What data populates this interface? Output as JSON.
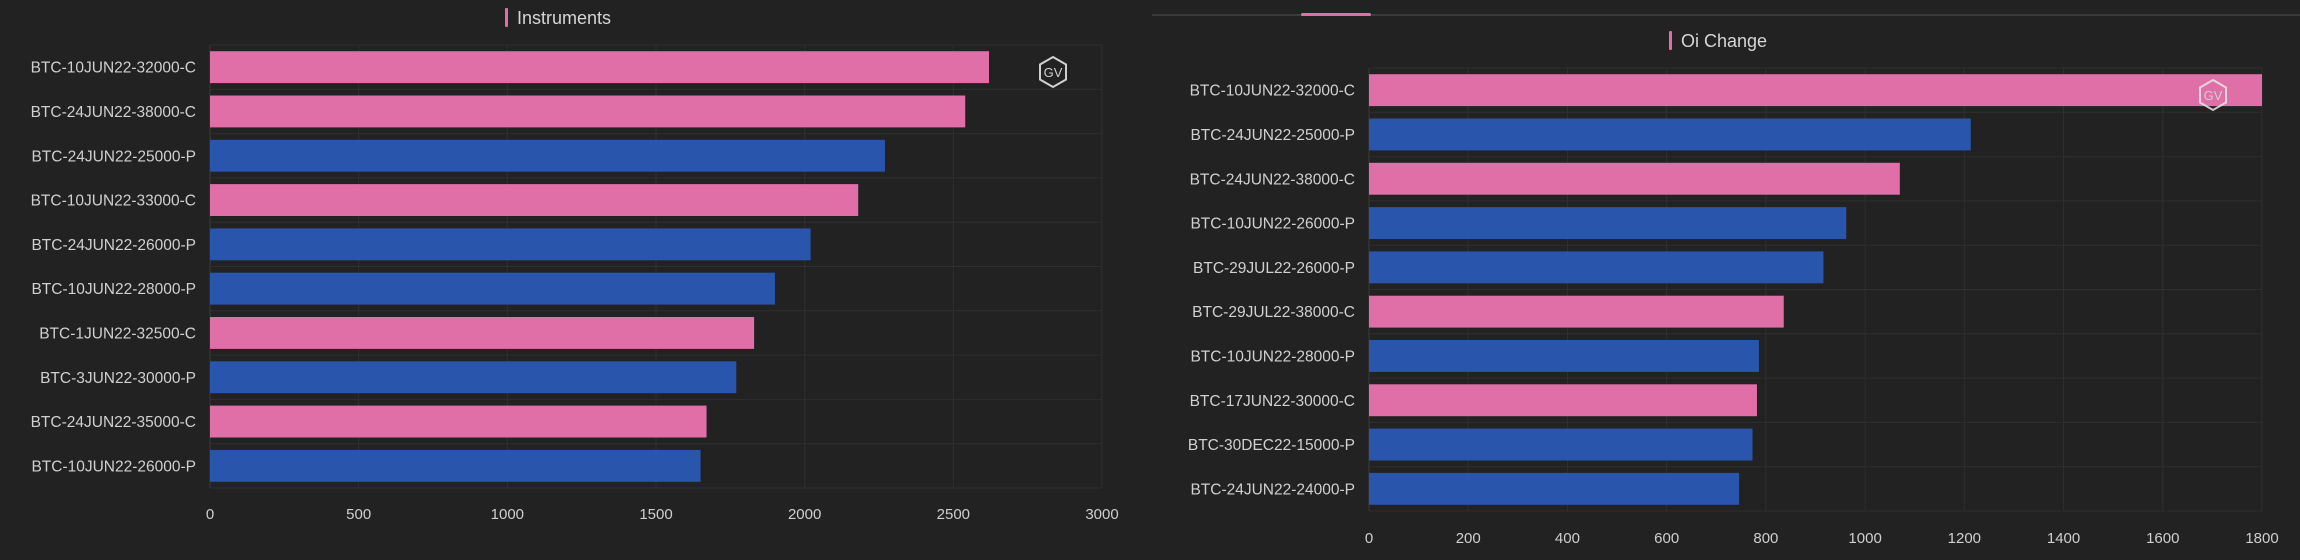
{
  "colors": {
    "call": "#e06fa8",
    "put": "#2a55ad",
    "background": "#222222",
    "grid": "#2f2f2f",
    "title_bar": "#e06fa8"
  },
  "watermark": "GV",
  "chart_data": [
    {
      "type": "bar",
      "orientation": "horizontal",
      "title": "Instruments",
      "xlim": [
        0,
        3000
      ],
      "xticks": [
        0,
        500,
        1000,
        1500,
        2000,
        2500,
        3000
      ],
      "grid": true,
      "categories": [
        "BTC-10JUN22-32000-C",
        "BTC-24JUN22-38000-C",
        "BTC-24JUN22-25000-P",
        "BTC-10JUN22-33000-C",
        "BTC-24JUN22-26000-P",
        "BTC-10JUN22-28000-P",
        "BTC-1JUN22-32500-C",
        "BTC-3JUN22-30000-P",
        "BTC-24JUN22-35000-C",
        "BTC-10JUN22-26000-P"
      ],
      "values": [
        2620,
        2540,
        2270,
        2180,
        2020,
        1900,
        1830,
        1770,
        1670,
        1650
      ]
    },
    {
      "type": "bar",
      "orientation": "horizontal",
      "title": "Oi Change",
      "xlim": [
        0,
        1800
      ],
      "xticks": [
        0,
        200,
        400,
        600,
        800,
        1000,
        1200,
        1400,
        1600,
        1800
      ],
      "grid": true,
      "categories": [
        "BTC-10JUN22-32000-C",
        "BTC-24JUN22-25000-P",
        "BTC-24JUN22-38000-C",
        "BTC-10JUN22-26000-P",
        "BTC-29JUL22-26000-P",
        "BTC-29JUL22-38000-C",
        "BTC-10JUN22-28000-P",
        "BTC-17JUN22-30000-C",
        "BTC-30DEC22-15000-P",
        "BTC-24JUN22-24000-P"
      ],
      "values": [
        1800,
        1213,
        1070,
        962,
        916,
        836,
        786,
        782,
        773,
        746
      ]
    }
  ]
}
